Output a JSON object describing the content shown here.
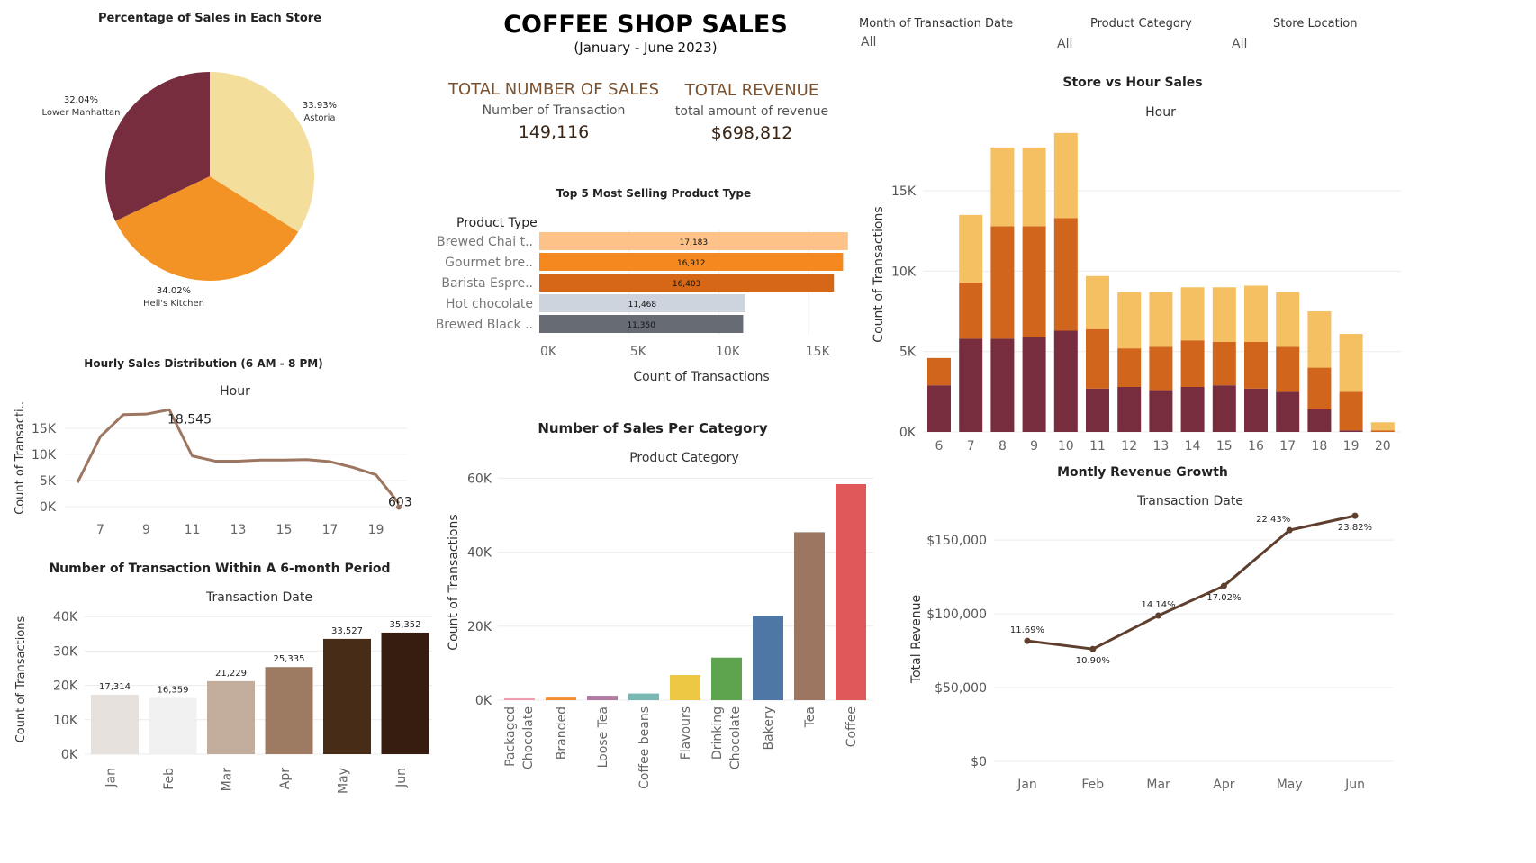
{
  "header": {
    "title": "COFFEE SHOP SALES",
    "subtitle": "(January - June 2023)"
  },
  "filters": [
    {
      "label": "Month of Transaction Date",
      "value": "All"
    },
    {
      "label": "Product Category",
      "value": "All"
    },
    {
      "label": "Store Location",
      "value": "All"
    }
  ],
  "kpis": [
    {
      "title": "TOTAL NUMBER OF SALES",
      "subtitle": "Number of Transaction",
      "value": "149,116"
    },
    {
      "title": "TOTAL REVENUE",
      "subtitle": "total amount of revenue",
      "value": "$698,812"
    }
  ],
  "colors": {
    "maroon": "#772d3d",
    "orange": "#f39325",
    "cream": "#f4de9b",
    "brown_line": "#9c7660",
    "dark_brown": "#5e3f2e"
  },
  "chart_data": [
    {
      "id": "pie",
      "type": "pie",
      "title": "Percentage of Sales in Each Store",
      "slices": [
        {
          "name": "Astoria",
          "value": 33.93,
          "label": "33.93%",
          "color": "#f4de9b"
        },
        {
          "name": "Hell's Kitchen",
          "value": 34.02,
          "label": "34.02%",
          "color": "#f39325"
        },
        {
          "name": "Lower Manhattan",
          "value": 32.04,
          "label": "32.04%",
          "color": "#772d3d"
        }
      ]
    },
    {
      "id": "hourly",
      "type": "line",
      "title": "Hourly Sales Distribution (6 AM - 8 PM)",
      "xlabel": "Hour",
      "ylabel": "Count of Transacti..",
      "x": [
        6,
        7,
        8,
        9,
        10,
        11,
        12,
        13,
        14,
        15,
        16,
        17,
        18,
        19,
        20
      ],
      "values": [
        4600,
        13400,
        17600,
        17700,
        18545,
        9700,
        8700,
        8700,
        8900,
        8900,
        9000,
        8600,
        7500,
        6100,
        603
      ],
      "xticks": [
        "7",
        "9",
        "11",
        "13",
        "15",
        "17",
        "19"
      ],
      "yticks": [
        "0K",
        "5K",
        "10K",
        "15K"
      ],
      "ylim": [
        0,
        20000
      ],
      "annotations": [
        "18,545",
        "603"
      ]
    },
    {
      "id": "monthly_tx",
      "type": "bar",
      "title": "Number of Transaction Within A 6-month Period",
      "xlabel": "Transaction Date",
      "ylabel": "Count of Transactions",
      "categories": [
        "Jan",
        "Feb",
        "Mar",
        "Apr",
        "May",
        "Jun"
      ],
      "values": [
        17314,
        16359,
        21229,
        25335,
        33527,
        35352
      ],
      "labels": [
        "17,314",
        "16,359",
        "21,229",
        "25,335",
        "33,527",
        "35,352"
      ],
      "colors": [
        "#e7e1de",
        "#f0f0f0",
        "#c2ad9d",
        "#9c7b62",
        "#472d17",
        "#371d0f"
      ],
      "yticks": [
        "0K",
        "10K",
        "20K",
        "30K",
        "40K"
      ],
      "ylim": [
        0,
        40000
      ]
    },
    {
      "id": "top5",
      "type": "bar",
      "orientation": "horizontal",
      "title": "Top 5 Most Selling Product Type",
      "xlabel": "Count of Transactions",
      "ylabel": "Product Type",
      "categories": [
        "Brewed Chai t..",
        "Gourmet bre..",
        "Barista Espre..",
        "Hot chocolate",
        "Brewed Black .."
      ],
      "values": [
        17183,
        16912,
        16403,
        11468,
        11350
      ],
      "labels": [
        "17,183",
        "16,912",
        "16,403",
        "11,468",
        "11,350"
      ],
      "colors": [
        "#fcc287",
        "#f5891f",
        "#d56717",
        "#cdd4de",
        "#666b74"
      ],
      "xticks": [
        "0K",
        "5K",
        "10K",
        "15K"
      ],
      "xlim": [
        0,
        17183
      ]
    },
    {
      "id": "category",
      "type": "bar",
      "title": "Number of Sales Per Category",
      "xlabel": "Product Category",
      "ylabel": "Count of Transactions",
      "categories": [
        "Packaged Chocolate",
        "Branded",
        "Loose Tea",
        "Coffee beans",
        "Flavours",
        "Drinking Chocolate",
        "Bakery",
        "Tea",
        "Coffee"
      ],
      "values": [
        500,
        700,
        1200,
        1800,
        6800,
        11500,
        22800,
        45400,
        58400
      ],
      "colors": [
        "#ef9fb1",
        "#f08c32",
        "#b27ba3",
        "#79b7b2",
        "#ecc744",
        "#5ea34d",
        "#4e77a6",
        "#9c7660",
        "#e05858"
      ],
      "yticks": [
        "0K",
        "20K",
        "40K",
        "60K"
      ],
      "ylim": [
        0,
        60000
      ]
    },
    {
      "id": "store_hour",
      "type": "bar",
      "stacked": true,
      "title": "Store vs Hour Sales",
      "xlabel": "Hour",
      "ylabel": "Count of Transactions",
      "categories": [
        "6",
        "7",
        "8",
        "9",
        "10",
        "11",
        "12",
        "13",
        "14",
        "15",
        "16",
        "17",
        "18",
        "19",
        "20"
      ],
      "series": [
        {
          "values": [
            2900,
            5800,
            5800,
            5900,
            6300,
            2700,
            2800,
            2600,
            2800,
            2900,
            2700,
            2500,
            1400,
            100,
            0
          ],
          "color": "#772d3d"
        },
        {
          "values": [
            1700,
            3500,
            7000,
            6900,
            7000,
            3700,
            2400,
            2700,
            2900,
            2700,
            2900,
            2800,
            2600,
            2400,
            100
          ],
          "color": "#d2651c"
        },
        {
          "values": [
            0,
            4200,
            4900,
            4900,
            5300,
            3300,
            3500,
            3400,
            3300,
            3400,
            3500,
            3400,
            3500,
            3600,
            500
          ],
          "color": "#f4c062"
        }
      ],
      "yticks": [
        "0K",
        "5K",
        "10K",
        "15K"
      ],
      "ylim": [
        0,
        18600
      ]
    },
    {
      "id": "revenue",
      "type": "line",
      "title": "Montly Revenue Growth",
      "xlabel": "Transaction Date",
      "ylabel": "Total Revenue",
      "categories": [
        "Jan",
        "Feb",
        "Mar",
        "Apr",
        "May",
        "Jun"
      ],
      "values": [
        81678,
        76145,
        98835,
        118941,
        156728,
        166486
      ],
      "labels": [
        "11.69%",
        "10.90%",
        "14.14%",
        "17.02%",
        "22.43%",
        "23.82%"
      ],
      "yticks": [
        "$0",
        "$50,000",
        "$100,000",
        "$150,000"
      ],
      "ylim": [
        0,
        170000
      ]
    }
  ]
}
